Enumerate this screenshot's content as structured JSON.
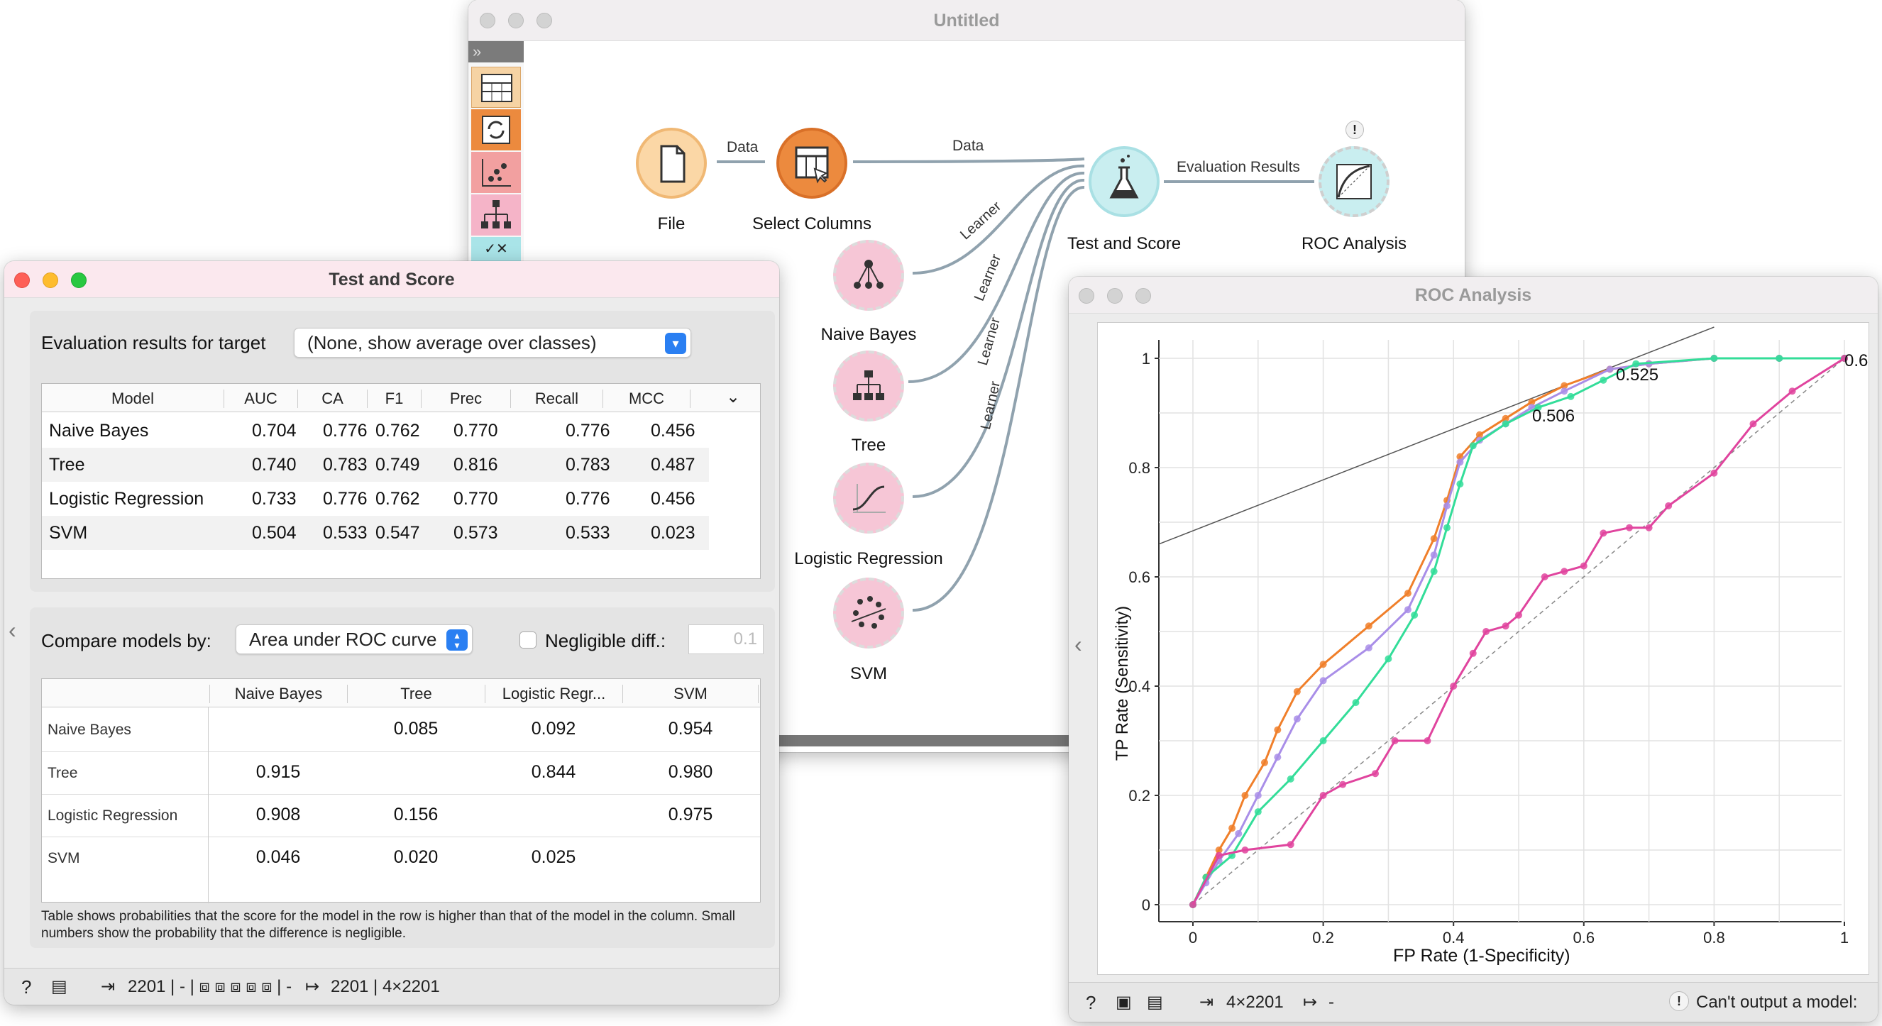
{
  "canvas": {
    "title": "Untitled",
    "toolbox": [
      "table-icon",
      "refresh-icon",
      "scatter-icon",
      "tree-icon",
      "distance-icon"
    ],
    "widgets": {
      "file": "File",
      "select_columns": "Select Columns",
      "naive_bayes": "Naive Bayes",
      "tree": "Tree",
      "logistic_regression": "Logistic Regression",
      "svm": "SVM",
      "test_and_score": "Test and Score",
      "roc_analysis": "ROC Analysis"
    },
    "links": {
      "data1": "Data",
      "data2": "Data",
      "learner": "Learner",
      "evaluation": "Evaluation Results",
      "warning": "!"
    }
  },
  "test_score": {
    "title": "Test and Score",
    "target_label": "Evaluation results for target",
    "target_value": "(None, show average over classes)",
    "columns": [
      "Model",
      "AUC",
      "CA",
      "F1",
      "Prec",
      "Recall",
      "MCC"
    ],
    "rows": [
      {
        "model": "Naive Bayes",
        "auc": "0.704",
        "ca": "0.776",
        "f1": "0.762",
        "prec": "0.770",
        "recall": "0.776",
        "mcc": "0.456"
      },
      {
        "model": "Tree",
        "auc": "0.740",
        "ca": "0.783",
        "f1": "0.749",
        "prec": "0.816",
        "recall": "0.783",
        "mcc": "0.487"
      },
      {
        "model": "Logistic Regression",
        "auc": "0.733",
        "ca": "0.776",
        "f1": "0.762",
        "prec": "0.770",
        "recall": "0.776",
        "mcc": "0.456"
      },
      {
        "model": "SVM",
        "auc": "0.504",
        "ca": "0.533",
        "f1": "0.547",
        "prec": "0.573",
        "recall": "0.533",
        "mcc": "0.023"
      }
    ],
    "compare_label": "Compare models by:",
    "compare_value": "Area under ROC curve",
    "negligible_label": "Negligible diff.:",
    "negligible_value": "0.1",
    "compare_cols": [
      "Naive Bayes",
      "Tree",
      "Logistic Regr...",
      "SVM"
    ],
    "compare_rows": [
      {
        "name": "Naive Bayes",
        "vals": [
          "",
          "0.085",
          "0.092",
          "0.954"
        ]
      },
      {
        "name": "Tree",
        "vals": [
          "0.915",
          "",
          "0.844",
          "0.980"
        ]
      },
      {
        "name": "Logistic Regression",
        "vals": [
          "0.908",
          "0.156",
          "",
          "0.975"
        ]
      },
      {
        "name": "SVM",
        "vals": [
          "0.046",
          "0.020",
          "0.025",
          ""
        ]
      }
    ],
    "footnote": "Table shows probabilities that the score for the model in the row is higher than that of the model in the column. Small numbers show the probability that the difference is negligible.",
    "status_in": "2201 | - | ⧈ ⧈ ⧈ ⧈ ⧈ | -",
    "status_out": "2201 | 4×2201"
  },
  "roc": {
    "title": "ROC Analysis",
    "status_in": "4×2201",
    "status_out": "-",
    "status_warning": "Can't output a model:"
  },
  "chart_data": {
    "type": "line",
    "xlabel": "FP Rate (1-Specificity)",
    "ylabel": "TP Rate (Sensitivity)",
    "xlim": [
      0,
      1
    ],
    "ylim": [
      0,
      1
    ],
    "xticks": [
      "0",
      "0.2",
      "0.4",
      "0.6",
      "0.8",
      "1"
    ],
    "yticks": [
      "0",
      "0.2",
      "0.4",
      "0.6",
      "0.8",
      "1"
    ],
    "grid": true,
    "annotations": [
      "0.506",
      "0.525",
      "0.6"
    ],
    "series": [
      {
        "color": "#f07f2a",
        "x": [
          0,
          0.02,
          0.04,
          0.06,
          0.08,
          0.11,
          0.13,
          0.16,
          0.2,
          0.27,
          0.33,
          0.37,
          0.39,
          0.41,
          0.44,
          0.48,
          0.52,
          0.57,
          0.64,
          0.7,
          0.8,
          0.9,
          1
        ],
        "y": [
          0,
          0.05,
          0.1,
          0.14,
          0.2,
          0.26,
          0.32,
          0.39,
          0.44,
          0.51,
          0.57,
          0.67,
          0.74,
          0.82,
          0.86,
          0.89,
          0.92,
          0.95,
          0.98,
          0.99,
          1,
          1,
          1
        ]
      },
      {
        "color": "#a98ee8",
        "x": [
          0,
          0.02,
          0.04,
          0.07,
          0.1,
          0.13,
          0.16,
          0.2,
          0.27,
          0.33,
          0.37,
          0.39,
          0.41,
          0.44,
          0.48,
          0.52,
          0.57,
          0.64,
          0.7,
          0.8,
          0.9,
          1
        ],
        "y": [
          0,
          0.04,
          0.08,
          0.13,
          0.2,
          0.27,
          0.34,
          0.41,
          0.47,
          0.54,
          0.64,
          0.73,
          0.81,
          0.85,
          0.88,
          0.91,
          0.94,
          0.98,
          0.99,
          1,
          1,
          1
        ]
      },
      {
        "color": "#33dd99",
        "x": [
          0,
          0.02,
          0.06,
          0.1,
          0.15,
          0.2,
          0.25,
          0.3,
          0.34,
          0.37,
          0.39,
          0.41,
          0.43,
          0.48,
          0.53,
          0.58,
          0.63,
          0.68,
          0.8,
          0.9,
          1
        ],
        "y": [
          0,
          0.05,
          0.09,
          0.17,
          0.23,
          0.3,
          0.37,
          0.45,
          0.53,
          0.61,
          0.69,
          0.77,
          0.84,
          0.88,
          0.91,
          0.93,
          0.96,
          0.99,
          1,
          1,
          1
        ]
      },
      {
        "color": "#e0449e",
        "x": [
          0,
          0.04,
          0.08,
          0.15,
          0.2,
          0.23,
          0.28,
          0.31,
          0.36,
          0.4,
          0.43,
          0.45,
          0.48,
          0.5,
          0.54,
          0.57,
          0.6,
          0.63,
          0.67,
          0.7,
          0.73,
          0.8,
          0.86,
          0.92,
          1
        ],
        "y": [
          0,
          0.09,
          0.1,
          0.11,
          0.2,
          0.22,
          0.24,
          0.3,
          0.3,
          0.4,
          0.46,
          0.5,
          0.51,
          0.53,
          0.6,
          0.61,
          0.62,
          0.68,
          0.69,
          0.69,
          0.73,
          0.79,
          0.88,
          0.94,
          1
        ]
      }
    ]
  }
}
